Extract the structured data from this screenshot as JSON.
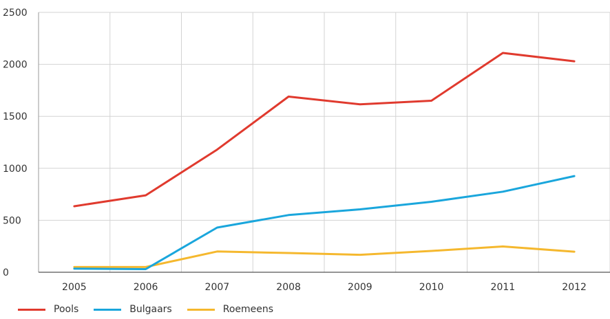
{
  "chart_data": {
    "type": "line",
    "x": [
      "2005",
      "2006",
      "2007",
      "2008",
      "2009",
      "2010",
      "2011",
      "2012"
    ],
    "ylim": [
      0,
      2500
    ],
    "yticks": [
      "0",
      "500",
      "1000",
      "1500",
      "2000",
      "2500"
    ],
    "grid": true,
    "legend_position": "bottom-left",
    "series": [
      {
        "name": "Pools",
        "color": "#e03a2e",
        "values": [
          635,
          740,
          1180,
          1690,
          1615,
          1650,
          2110,
          2030
        ]
      },
      {
        "name": "Bulgaars",
        "color": "#1aa6dc",
        "values": [
          35,
          30,
          430,
          550,
          605,
          678,
          775,
          925
        ]
      },
      {
        "name": "Roemeens",
        "color": "#f5b82e",
        "values": [
          50,
          50,
          200,
          185,
          168,
          205,
          248,
          198
        ]
      }
    ]
  }
}
